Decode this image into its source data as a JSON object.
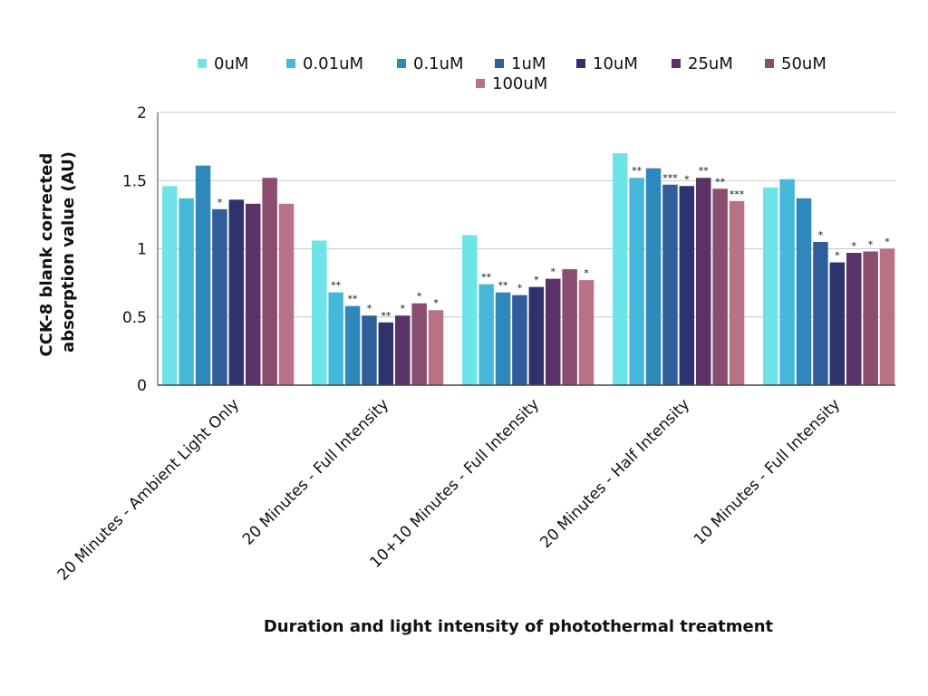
{
  "chart_data": {
    "type": "bar",
    "categories": [
      "20 Minutes - Ambient Light Only",
      "20 Minutes - Full Intensity",
      "10+10 Minutes - Full Intensity",
      "20 Minutes - Half Intensity",
      "10 Minutes - Full Intensity"
    ],
    "series": [
      {
        "name": "0uM",
        "color": "#6ee4e8",
        "values": [
          1.46,
          1.06,
          1.1,
          1.7,
          1.45
        ],
        "annotations": [
          "",
          "",
          "",
          "",
          ""
        ]
      },
      {
        "name": "0.01uM",
        "color": "#45b8d8",
        "values": [
          1.37,
          0.68,
          0.74,
          1.52,
          1.51
        ],
        "annotations": [
          "",
          "**",
          "**",
          "**",
          ""
        ]
      },
      {
        "name": "0.1uM",
        "color": "#2f88bb",
        "values": [
          1.61,
          0.58,
          0.68,
          1.59,
          1.37
        ],
        "annotations": [
          "",
          "**",
          "**",
          "",
          ""
        ]
      },
      {
        "name": "1uM",
        "color": "#2f5e9a",
        "values": [
          1.29,
          0.51,
          0.66,
          1.47,
          1.05
        ],
        "annotations": [
          "*",
          "*",
          "*",
          "***",
          "*"
        ]
      },
      {
        "name": "10uM",
        "color": "#2e336d",
        "values": [
          1.36,
          0.46,
          0.72,
          1.46,
          0.9
        ],
        "annotations": [
          "",
          "**",
          "*",
          "*",
          "*"
        ]
      },
      {
        "name": "25uM",
        "color": "#5a3266",
        "values": [
          1.33,
          0.51,
          0.78,
          1.52,
          0.97
        ],
        "annotations": [
          "",
          "*",
          "*",
          "**",
          "*"
        ]
      },
      {
        "name": "50uM",
        "color": "#8a4d70",
        "values": [
          1.52,
          0.6,
          0.85,
          1.44,
          0.98
        ],
        "annotations": [
          "",
          "*",
          "",
          "**",
          "*"
        ]
      },
      {
        "name": "100uM",
        "color": "#b97285",
        "values": [
          1.33,
          0.55,
          0.77,
          1.35,
          1.0
        ],
        "annotations": [
          "",
          "*",
          "*",
          "***",
          "*"
        ]
      }
    ],
    "ylim": [
      0,
      2
    ],
    "yticks": [
      0,
      0.5,
      1,
      1.5,
      2
    ],
    "ytick_labels": [
      "0",
      "0.5",
      "1",
      "1.5",
      "2"
    ],
    "xlabel": "Duration and light intensity of photothermal treatment",
    "ylabel_lines": [
      "CCK-8 blank corrected",
      "absorption value (AU)"
    ],
    "grid": true,
    "legend_position": "top"
  }
}
